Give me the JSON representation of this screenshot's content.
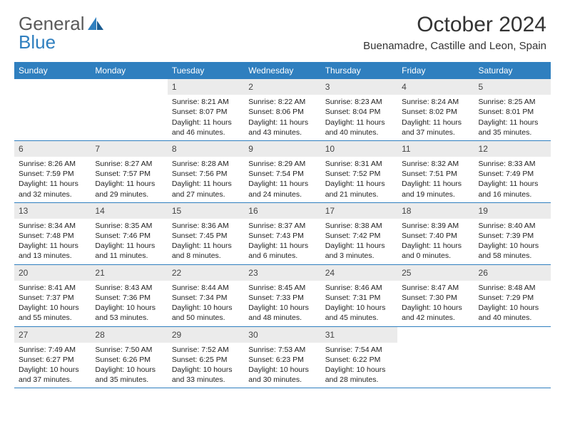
{
  "logo": {
    "text1": "General",
    "text2": "Blue"
  },
  "title": "October 2024",
  "location": "Buenamadre, Castille and Leon, Spain",
  "colors": {
    "header_bg": "#2f7fbf",
    "daynum_bg": "#ebebeb",
    "border": "#2f7fbf"
  },
  "dayNames": [
    "Sunday",
    "Monday",
    "Tuesday",
    "Wednesday",
    "Thursday",
    "Friday",
    "Saturday"
  ],
  "weeks": [
    [
      {
        "n": "",
        "sr": "",
        "ss": "",
        "dl": ""
      },
      {
        "n": "",
        "sr": "",
        "ss": "",
        "dl": ""
      },
      {
        "n": "1",
        "sr": "Sunrise: 8:21 AM",
        "ss": "Sunset: 8:07 PM",
        "dl": "Daylight: 11 hours and 46 minutes."
      },
      {
        "n": "2",
        "sr": "Sunrise: 8:22 AM",
        "ss": "Sunset: 8:06 PM",
        "dl": "Daylight: 11 hours and 43 minutes."
      },
      {
        "n": "3",
        "sr": "Sunrise: 8:23 AM",
        "ss": "Sunset: 8:04 PM",
        "dl": "Daylight: 11 hours and 40 minutes."
      },
      {
        "n": "4",
        "sr": "Sunrise: 8:24 AM",
        "ss": "Sunset: 8:02 PM",
        "dl": "Daylight: 11 hours and 37 minutes."
      },
      {
        "n": "5",
        "sr": "Sunrise: 8:25 AM",
        "ss": "Sunset: 8:01 PM",
        "dl": "Daylight: 11 hours and 35 minutes."
      }
    ],
    [
      {
        "n": "6",
        "sr": "Sunrise: 8:26 AM",
        "ss": "Sunset: 7:59 PM",
        "dl": "Daylight: 11 hours and 32 minutes."
      },
      {
        "n": "7",
        "sr": "Sunrise: 8:27 AM",
        "ss": "Sunset: 7:57 PM",
        "dl": "Daylight: 11 hours and 29 minutes."
      },
      {
        "n": "8",
        "sr": "Sunrise: 8:28 AM",
        "ss": "Sunset: 7:56 PM",
        "dl": "Daylight: 11 hours and 27 minutes."
      },
      {
        "n": "9",
        "sr": "Sunrise: 8:29 AM",
        "ss": "Sunset: 7:54 PM",
        "dl": "Daylight: 11 hours and 24 minutes."
      },
      {
        "n": "10",
        "sr": "Sunrise: 8:31 AM",
        "ss": "Sunset: 7:52 PM",
        "dl": "Daylight: 11 hours and 21 minutes."
      },
      {
        "n": "11",
        "sr": "Sunrise: 8:32 AM",
        "ss": "Sunset: 7:51 PM",
        "dl": "Daylight: 11 hours and 19 minutes."
      },
      {
        "n": "12",
        "sr": "Sunrise: 8:33 AM",
        "ss": "Sunset: 7:49 PM",
        "dl": "Daylight: 11 hours and 16 minutes."
      }
    ],
    [
      {
        "n": "13",
        "sr": "Sunrise: 8:34 AM",
        "ss": "Sunset: 7:48 PM",
        "dl": "Daylight: 11 hours and 13 minutes."
      },
      {
        "n": "14",
        "sr": "Sunrise: 8:35 AM",
        "ss": "Sunset: 7:46 PM",
        "dl": "Daylight: 11 hours and 11 minutes."
      },
      {
        "n": "15",
        "sr": "Sunrise: 8:36 AM",
        "ss": "Sunset: 7:45 PM",
        "dl": "Daylight: 11 hours and 8 minutes."
      },
      {
        "n": "16",
        "sr": "Sunrise: 8:37 AM",
        "ss": "Sunset: 7:43 PM",
        "dl": "Daylight: 11 hours and 6 minutes."
      },
      {
        "n": "17",
        "sr": "Sunrise: 8:38 AM",
        "ss": "Sunset: 7:42 PM",
        "dl": "Daylight: 11 hours and 3 minutes."
      },
      {
        "n": "18",
        "sr": "Sunrise: 8:39 AM",
        "ss": "Sunset: 7:40 PM",
        "dl": "Daylight: 11 hours and 0 minutes."
      },
      {
        "n": "19",
        "sr": "Sunrise: 8:40 AM",
        "ss": "Sunset: 7:39 PM",
        "dl": "Daylight: 10 hours and 58 minutes."
      }
    ],
    [
      {
        "n": "20",
        "sr": "Sunrise: 8:41 AM",
        "ss": "Sunset: 7:37 PM",
        "dl": "Daylight: 10 hours and 55 minutes."
      },
      {
        "n": "21",
        "sr": "Sunrise: 8:43 AM",
        "ss": "Sunset: 7:36 PM",
        "dl": "Daylight: 10 hours and 53 minutes."
      },
      {
        "n": "22",
        "sr": "Sunrise: 8:44 AM",
        "ss": "Sunset: 7:34 PM",
        "dl": "Daylight: 10 hours and 50 minutes."
      },
      {
        "n": "23",
        "sr": "Sunrise: 8:45 AM",
        "ss": "Sunset: 7:33 PM",
        "dl": "Daylight: 10 hours and 48 minutes."
      },
      {
        "n": "24",
        "sr": "Sunrise: 8:46 AM",
        "ss": "Sunset: 7:31 PM",
        "dl": "Daylight: 10 hours and 45 minutes."
      },
      {
        "n": "25",
        "sr": "Sunrise: 8:47 AM",
        "ss": "Sunset: 7:30 PM",
        "dl": "Daylight: 10 hours and 42 minutes."
      },
      {
        "n": "26",
        "sr": "Sunrise: 8:48 AM",
        "ss": "Sunset: 7:29 PM",
        "dl": "Daylight: 10 hours and 40 minutes."
      }
    ],
    [
      {
        "n": "27",
        "sr": "Sunrise: 7:49 AM",
        "ss": "Sunset: 6:27 PM",
        "dl": "Daylight: 10 hours and 37 minutes."
      },
      {
        "n": "28",
        "sr": "Sunrise: 7:50 AM",
        "ss": "Sunset: 6:26 PM",
        "dl": "Daylight: 10 hours and 35 minutes."
      },
      {
        "n": "29",
        "sr": "Sunrise: 7:52 AM",
        "ss": "Sunset: 6:25 PM",
        "dl": "Daylight: 10 hours and 33 minutes."
      },
      {
        "n": "30",
        "sr": "Sunrise: 7:53 AM",
        "ss": "Sunset: 6:23 PM",
        "dl": "Daylight: 10 hours and 30 minutes."
      },
      {
        "n": "31",
        "sr": "Sunrise: 7:54 AM",
        "ss": "Sunset: 6:22 PM",
        "dl": "Daylight: 10 hours and 28 minutes."
      },
      {
        "n": "",
        "sr": "",
        "ss": "",
        "dl": ""
      },
      {
        "n": "",
        "sr": "",
        "ss": "",
        "dl": ""
      }
    ]
  ]
}
